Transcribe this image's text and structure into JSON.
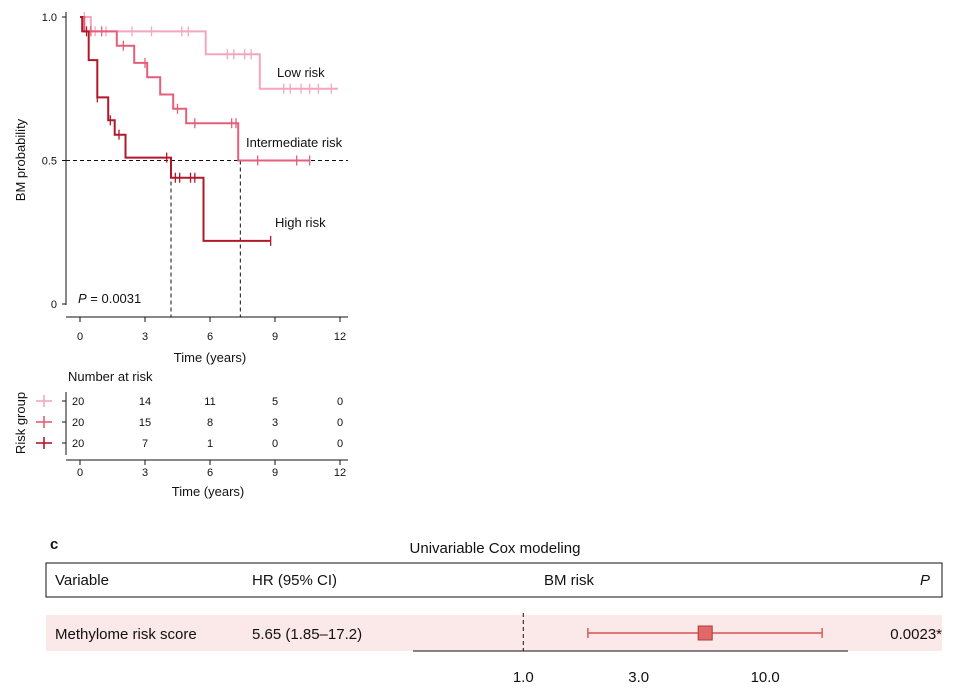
{
  "chart_data": [
    {
      "type": "line",
      "subtype": "kaplan-meier",
      "ylabel": "BM probability",
      "xlabel": "Time (years)",
      "xlim": [
        0,
        12
      ],
      "ylim": [
        0,
        1
      ],
      "xticks": [
        "0",
        "3",
        "6",
        "9",
        "12"
      ],
      "yticks": [
        "0",
        "0.5",
        "1.0"
      ],
      "reference_line_y": 0.5,
      "median_lines_x": [
        4.2,
        7.4
      ],
      "p_value_label": "P",
      "p_value_text": " = 0.0031",
      "series": [
        {
          "name": "Low risk",
          "color": "#f4a6bd",
          "steps": [
            [
              0,
              1.0
            ],
            [
              0.5,
              1.0
            ],
            [
              0.5,
              0.95
            ],
            [
              5.8,
              0.95
            ],
            [
              5.8,
              0.87
            ],
            [
              8.3,
              0.87
            ],
            [
              8.3,
              0.75
            ],
            [
              11.9,
              0.75
            ]
          ],
          "censor_x": [
            0.2,
            0.7,
            1.2,
            2.4,
            3.3,
            4.7,
            5.0,
            6.8,
            7.1,
            7.6,
            7.9,
            9.4,
            9.7,
            10.2,
            10.6,
            11.0,
            11.6
          ]
        },
        {
          "name": "Intermediate risk",
          "color": "#e45f7a",
          "steps": [
            [
              0,
              1.0
            ],
            [
              0.2,
              1.0
            ],
            [
              0.2,
              0.95
            ],
            [
              1.7,
              0.95
            ],
            [
              1.7,
              0.9
            ],
            [
              2.5,
              0.9
            ],
            [
              2.5,
              0.84
            ],
            [
              3.1,
              0.84
            ],
            [
              3.1,
              0.79
            ],
            [
              3.7,
              0.79
            ],
            [
              3.7,
              0.73
            ],
            [
              4.3,
              0.73
            ],
            [
              4.3,
              0.68
            ],
            [
              4.9,
              0.68
            ],
            [
              4.9,
              0.63
            ],
            [
              7.3,
              0.63
            ],
            [
              7.3,
              0.5
            ],
            [
              10.6,
              0.5
            ]
          ],
          "censor_x": [
            0.5,
            1.0,
            2.0,
            3.0,
            4.5,
            5.3,
            7.0,
            7.2,
            8.2,
            10.0,
            10.6
          ]
        },
        {
          "name": "High risk",
          "color": "#b2182b",
          "steps": [
            [
              0,
              1.0
            ],
            [
              0.1,
              1.0
            ],
            [
              0.1,
              0.95
            ],
            [
              0.4,
              0.95
            ],
            [
              0.4,
              0.85
            ],
            [
              0.8,
              0.85
            ],
            [
              0.8,
              0.72
            ],
            [
              1.3,
              0.72
            ],
            [
              1.3,
              0.64
            ],
            [
              1.6,
              0.64
            ],
            [
              1.6,
              0.59
            ],
            [
              2.1,
              0.59
            ],
            [
              2.1,
              0.51
            ],
            [
              4.2,
              0.51
            ],
            [
              4.2,
              0.44
            ],
            [
              5.7,
              0.44
            ],
            [
              5.7,
              0.22
            ],
            [
              8.8,
              0.22
            ]
          ],
          "censor_x": [
            0.3,
            0.8,
            1.4,
            1.8,
            4.0,
            4.4,
            4.6,
            5.1,
            5.3,
            8.8
          ]
        }
      ],
      "risk_table": {
        "title": "Number at risk",
        "ylabel": "Risk group",
        "times": [
          0,
          3,
          6,
          9,
          12
        ],
        "xlabel": "Time (years)",
        "rows": [
          {
            "color": "#f4a6bd",
            "counts": [
              "20",
              "14",
              "11",
              "5",
              "0"
            ]
          },
          {
            "color": "#e45f7a",
            "counts": [
              "20",
              "15",
              "8",
              "3",
              "0"
            ]
          },
          {
            "color": "#b2182b",
            "counts": [
              "20",
              "7",
              "1",
              "0",
              "0"
            ]
          }
        ]
      }
    },
    {
      "type": "forest",
      "panel_label": "c",
      "title": "Univariable Cox modeling",
      "header": {
        "variable": "Variable",
        "hr": "HR (95% CI)",
        "plot": "BM risk",
        "p": "P"
      },
      "rows": [
        {
          "variable": "Methylome risk score",
          "hr_text": "5.65 (1.85–17.2)",
          "hr": 5.65,
          "ci_low": 1.85,
          "ci_high": 17.2,
          "p": "0.0023*"
        }
      ],
      "scale": "log",
      "xlim": [
        0.35,
        22
      ],
      "reference_x": 1.0,
      "xticks": [
        1.0,
        3.0,
        10.0
      ],
      "xtick_labels": [
        "1.0",
        "3.0",
        "10.0"
      ],
      "point_color": "#e06a6a",
      "line_color": "#d9534f",
      "row_band_color": "#fbe8e8"
    }
  ]
}
